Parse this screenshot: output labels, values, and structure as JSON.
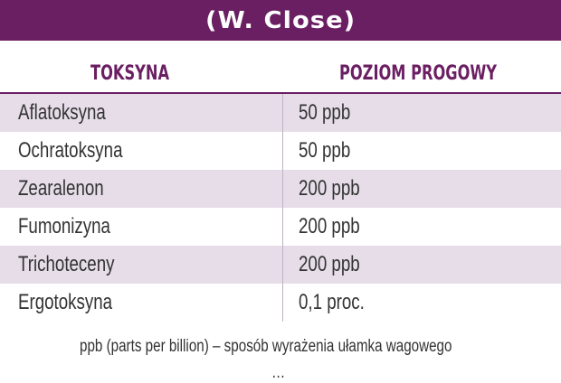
{
  "title": "(W. Close)",
  "columns": [
    "TOKSYNA",
    "POZIOM PROGOWY"
  ],
  "rows": [
    {
      "toxin": "Aflatoksyna",
      "threshold": "50 ppb"
    },
    {
      "toxin": "Ochratoksyna",
      "threshold": "50 ppb"
    },
    {
      "toxin": "Zearalenon",
      "threshold": "200 ppb"
    },
    {
      "toxin": "Fumonizyna",
      "threshold": "200 ppb"
    },
    {
      "toxin": "Trichoteceny",
      "threshold": "200 ppb"
    },
    {
      "toxin": "Ergotoksyna",
      "threshold": "0,1 proc."
    }
  ],
  "footnote": "ppb (parts per billion) – sposób wyrażenia ułamka wagowego",
  "footnote_cut": "…"
}
